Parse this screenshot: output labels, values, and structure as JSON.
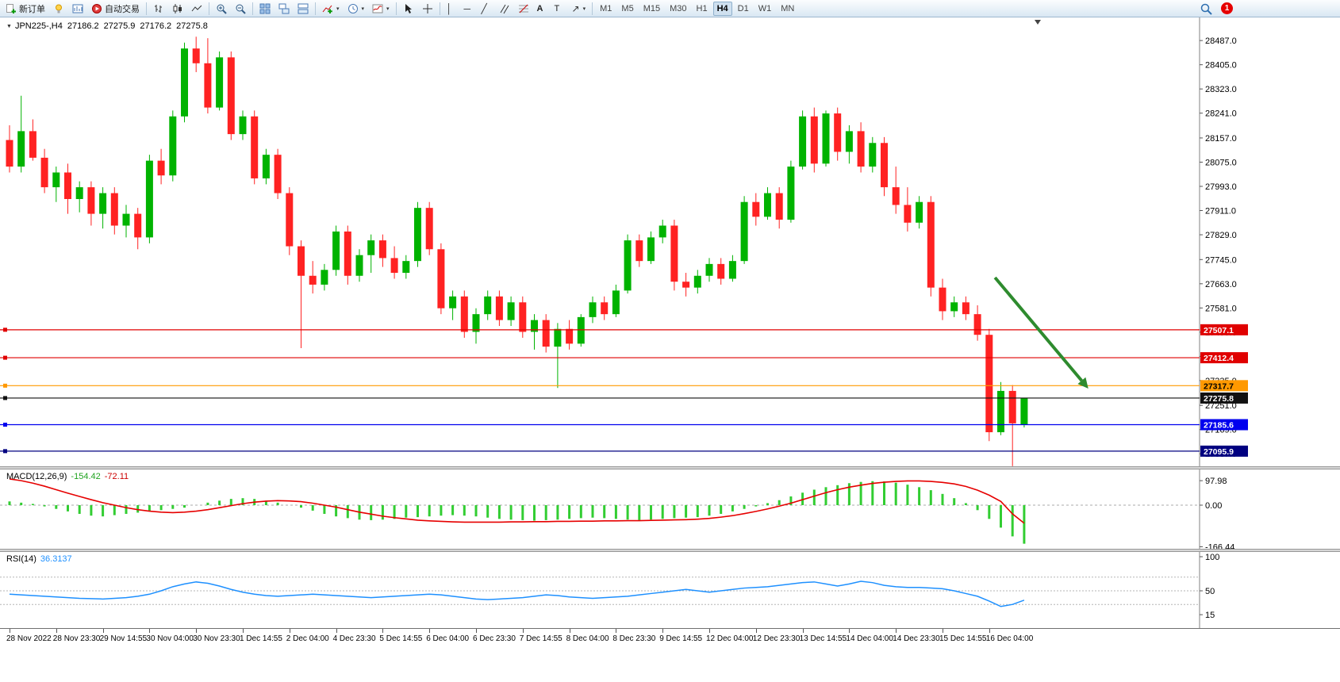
{
  "toolbar": {
    "new_order_label": "新订单",
    "autotrading_label": "自动交易",
    "text_tool_label": "A",
    "label_tool_label": "T",
    "timeframes": [
      "M1",
      "M5",
      "M15",
      "M30",
      "H1",
      "H4",
      "D1",
      "W1",
      "MN"
    ],
    "active_timeframe": "H4",
    "notification_count": "1"
  },
  "chart": {
    "symbol_period": "JPN225-,H4",
    "open": "27186.2",
    "high": "27275.9",
    "low": "27176.2",
    "close": "27275.8",
    "price_axis": [
      28487,
      28405,
      28323,
      28241,
      28157,
      28075,
      27993,
      27911,
      27829,
      27745,
      27663,
      27581,
      27499,
      27417,
      27335,
      27251,
      27169,
      27087
    ],
    "lines": [
      {
        "label": "27507.1",
        "value": 27507.1,
        "color": "#e00000",
        "text_color": "#ffffff"
      },
      {
        "label": "27412.4",
        "value": 27412.4,
        "color": "#e00000",
        "text_color": "#ffffff"
      },
      {
        "label": "27317.7",
        "value": 27317.7,
        "color": "#ff9900",
        "text_color": "#000000"
      },
      {
        "label": "27275.8",
        "value": 27275.8,
        "color": "#111111",
        "text_color": "#ffffff"
      },
      {
        "label": "27185.6",
        "value": 27185.6,
        "color": "#0000ee",
        "text_color": "#ffffff"
      },
      {
        "label": "27095.9",
        "value": 27095.9,
        "color": "#000080",
        "text_color": "#ffffff"
      }
    ],
    "arrow": {
      "from_index": 84.5,
      "from_price": 27684,
      "to_index": 92.5,
      "to_price": 27308,
      "color": "#2e8b2e"
    }
  },
  "macd": {
    "name": "MACD(12,26,9)",
    "value_main": "-154.42",
    "value_signal": "-72.11",
    "axis": [
      97.98,
      0,
      -166.44
    ]
  },
  "rsi": {
    "name": "RSI(14)",
    "value": "36.3137",
    "axis": [
      100,
      50,
      15
    ],
    "levels": [
      70,
      50,
      30
    ]
  },
  "time_axis": [
    "28 Nov 2022",
    "28 Nov 23:30",
    "29 Nov 14:55",
    "30 Nov 04:00",
    "30 Nov 23:30",
    "1 Dec 14:55",
    "2 Dec 04:00",
    "4 Dec 23:30",
    "5 Dec 14:55",
    "6 Dec 04:00",
    "6 Dec 23:30",
    "7 Dec 14:55",
    "8 Dec 04:00",
    "8 Dec 23:30",
    "9 Dec 14:55",
    "12 Dec 04:00",
    "12 Dec 23:30",
    "13 Dec 14:55",
    "14 Dec 04:00",
    "14 Dec 23:30",
    "15 Dec 14:55",
    "16 Dec 04:00"
  ],
  "chart_data": {
    "type": "candlestick",
    "symbol": "JPN225-",
    "timeframe": "H4",
    "title": "JPN225-,H4 27186.2 27275.9 27176.2 27275.8",
    "price_range": [
      27045,
      28533
    ],
    "colors": {
      "up": "#00b300",
      "down": "#ff2222",
      "macd": "#32cd32",
      "signal": "#e60000",
      "rsi": "#1e90ff"
    },
    "candles": [
      [
        28150,
        28200,
        28040,
        28060
      ],
      [
        28060,
        28300,
        28040,
        28180
      ],
      [
        28180,
        28220,
        28080,
        28090
      ],
      [
        28090,
        28120,
        27970,
        27990
      ],
      [
        27990,
        28060,
        27940,
        28040
      ],
      [
        28040,
        28070,
        27900,
        27950
      ],
      [
        27950,
        28010,
        27905,
        27990
      ],
      [
        27990,
        28010,
        27860,
        27900
      ],
      [
        27900,
        27990,
        27850,
        27970
      ],
      [
        27970,
        27990,
        27830,
        27860
      ],
      [
        27860,
        27930,
        27820,
        27900
      ],
      [
        27900,
        27920,
        27780,
        27820
      ],
      [
        27820,
        28100,
        27800,
        28080
      ],
      [
        28080,
        28120,
        28000,
        28030
      ],
      [
        28030,
        28250,
        28010,
        28230
      ],
      [
        28230,
        28480,
        28210,
        28460
      ],
      [
        28460,
        28500,
        28380,
        28410
      ],
      [
        28410,
        28495,
        28240,
        28260
      ],
      [
        28260,
        28450,
        28250,
        28430
      ],
      [
        28430,
        28450,
        28150,
        28170
      ],
      [
        28170,
        28250,
        28150,
        28230
      ],
      [
        28230,
        28250,
        28000,
        28020
      ],
      [
        28020,
        28120,
        28000,
        28100
      ],
      [
        28100,
        28120,
        27950,
        27970
      ],
      [
        27970,
        27990,
        27760,
        27790
      ],
      [
        27790,
        27810,
        27445,
        27690
      ],
      [
        27690,
        27740,
        27630,
        27660
      ],
      [
        27660,
        27730,
        27640,
        27710
      ],
      [
        27710,
        27860,
        27690,
        27840
      ],
      [
        27840,
        27860,
        27660,
        27690
      ],
      [
        27690,
        27780,
        27670,
        27760
      ],
      [
        27760,
        27830,
        27700,
        27810
      ],
      [
        27810,
        27830,
        27720,
        27750
      ],
      [
        27750,
        27790,
        27680,
        27700
      ],
      [
        27700,
        27760,
        27680,
        27740
      ],
      [
        27740,
        27940,
        27720,
        27920
      ],
      [
        27920,
        27940,
        27760,
        27780
      ],
      [
        27780,
        27800,
        27560,
        27580
      ],
      [
        27580,
        27640,
        27540,
        27620
      ],
      [
        27620,
        27640,
        27480,
        27500
      ],
      [
        27500,
        27580,
        27460,
        27560
      ],
      [
        27560,
        27640,
        27540,
        27620
      ],
      [
        27620,
        27640,
        27520,
        27540
      ],
      [
        27540,
        27620,
        27520,
        27600
      ],
      [
        27600,
        27620,
        27480,
        27500
      ],
      [
        27500,
        27560,
        27440,
        27540
      ],
      [
        27540,
        27560,
        27430,
        27450
      ],
      [
        27450,
        27530,
        27310,
        27510
      ],
      [
        27510,
        27540,
        27440,
        27460
      ],
      [
        27460,
        27560,
        27450,
        27550
      ],
      [
        27550,
        27620,
        27530,
        27600
      ],
      [
        27600,
        27620,
        27540,
        27560
      ],
      [
        27560,
        27660,
        27550,
        27640
      ],
      [
        27640,
        27830,
        27630,
        27810
      ],
      [
        27810,
        27830,
        27720,
        27740
      ],
      [
        27740,
        27840,
        27730,
        27820
      ],
      [
        27820,
        27880,
        27800,
        27860
      ],
      [
        27860,
        27880,
        27640,
        27670
      ],
      [
        27670,
        27700,
        27620,
        27650
      ],
      [
        27650,
        27710,
        27630,
        27690
      ],
      [
        27690,
        27750,
        27670,
        27730
      ],
      [
        27730,
        27750,
        27660,
        27680
      ],
      [
        27680,
        27760,
        27670,
        27740
      ],
      [
        27740,
        27960,
        27730,
        27940
      ],
      [
        27940,
        27970,
        27860,
        27890
      ],
      [
        27890,
        27990,
        27880,
        27970
      ],
      [
        27970,
        27990,
        27850,
        27880
      ],
      [
        27880,
        28080,
        27870,
        28060
      ],
      [
        28060,
        28250,
        28050,
        28230
      ],
      [
        28230,
        28260,
        28040,
        28070
      ],
      [
        28070,
        28250,
        28060,
        28240
      ],
      [
        28240,
        28260,
        28080,
        28110
      ],
      [
        28110,
        28200,
        28070,
        28180
      ],
      [
        28180,
        28210,
        28040,
        28060
      ],
      [
        28060,
        28160,
        28040,
        28140
      ],
      [
        28140,
        28160,
        27960,
        27990
      ],
      [
        27990,
        28060,
        27900,
        27930
      ],
      [
        27930,
        27990,
        27840,
        27870
      ],
      [
        27870,
        27960,
        27850,
        27940
      ],
      [
        27940,
        27960,
        27620,
        27650
      ],
      [
        27650,
        27680,
        27540,
        27570
      ],
      [
        27570,
        27620,
        27550,
        27600
      ],
      [
        27600,
        27620,
        27540,
        27560
      ],
      [
        27560,
        27590,
        27470,
        27490
      ],
      [
        27490,
        27510,
        27130,
        27160
      ],
      [
        27160,
        27330,
        27150,
        27300
      ],
      [
        27300,
        27320,
        27045,
        27190
      ],
      [
        27186.2,
        27275.9,
        27176.2,
        27275.8
      ]
    ],
    "macd_histogram": [
      15,
      10,
      5,
      -5,
      -15,
      -25,
      -35,
      -42,
      -45,
      -40,
      -35,
      -30,
      -25,
      -20,
      -15,
      -10,
      0,
      10,
      18,
      25,
      28,
      25,
      18,
      10,
      0,
      -10,
      -22,
      -35,
      -45,
      -52,
      -58,
      -60,
      -58,
      -55,
      -50,
      -48,
      -45,
      -42,
      -40,
      -42,
      -45,
      -50,
      -55,
      -58,
      -60,
      -62,
      -60,
      -58,
      -55,
      -52,
      -50,
      -52,
      -55,
      -58,
      -60,
      -58,
      -55,
      -52,
      -50,
      -48,
      -42,
      -35,
      -25,
      -15,
      -5,
      8,
      20,
      35,
      50,
      62,
      72,
      80,
      88,
      93,
      96,
      95,
      90,
      82,
      72,
      60,
      45,
      28,
      8,
      -20,
      -55,
      -90,
      -125,
      -154.4
    ],
    "macd_signal": [
      105,
      98,
      88,
      76,
      62,
      48,
      35,
      22,
      10,
      0,
      -10,
      -18,
      -24,
      -28,
      -30,
      -28,
      -24,
      -18,
      -10,
      -2,
      6,
      12,
      16,
      18,
      17,
      14,
      8,
      0,
      -8,
      -18,
      -28,
      -36,
      -44,
      -50,
      -55,
      -60,
      -63,
      -65,
      -67,
      -68,
      -68,
      -68,
      -68,
      -67,
      -67,
      -66,
      -66,
      -65,
      -65,
      -64,
      -64,
      -63,
      -63,
      -62,
      -62,
      -61,
      -60,
      -59,
      -58,
      -56,
      -53,
      -48,
      -42,
      -34,
      -25,
      -15,
      -4,
      8,
      22,
      36,
      50,
      62,
      72,
      80,
      87,
      92,
      95,
      97,
      97,
      95,
      91,
      85,
      75,
      60,
      40,
      15,
      -35,
      -72.1
    ],
    "rsi": [
      45,
      44,
      43,
      42,
      41,
      40,
      39,
      38.5,
      38,
      39,
      40,
      42,
      45,
      50,
      56,
      60,
      63,
      61,
      57,
      52,
      48,
      45,
      43,
      42,
      43,
      44,
      45,
      44,
      43,
      42,
      41,
      40,
      41,
      42,
      43,
      44,
      45,
      44,
      42,
      40,
      38,
      37,
      38,
      39,
      40,
      42,
      44,
      43,
      41,
      40,
      39,
      40,
      41,
      42,
      44,
      46,
      48,
      50,
      52,
      50,
      48,
      50,
      52,
      54,
      55,
      56,
      58,
      60,
      62,
      63,
      60,
      57,
      60,
      64,
      62,
      58,
      56,
      55,
      55,
      54,
      53,
      50,
      46,
      42,
      35,
      27,
      30,
      36.3
    ]
  }
}
